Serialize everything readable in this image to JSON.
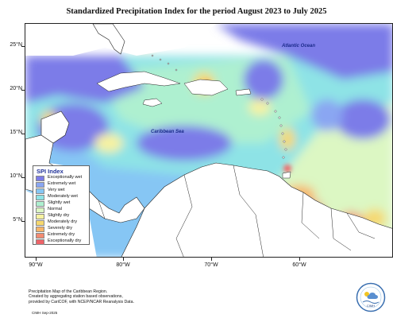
{
  "title": "Standardized Precipitation Index for the period August 2023 to July 2025",
  "axes": {
    "lat_ticks": [
      "25°N",
      "20°N",
      "15°N",
      "10°N",
      "5°N"
    ],
    "lon_ticks": [
      "90°W",
      "80°W",
      "70°W",
      "60°W"
    ]
  },
  "sea_labels": {
    "atlantic": "Atlantic Ocean",
    "caribbean": "Caribbean Sea"
  },
  "legend": {
    "title": "SPI Index",
    "items": [
      {
        "label": "Exceptionally wet",
        "color": "#7b7be8"
      },
      {
        "label": "Extremely wet",
        "color": "#8aa6f2"
      },
      {
        "label": "Very wet",
        "color": "#86c6f4"
      },
      {
        "label": "Moderately wet",
        "color": "#8ee3e6"
      },
      {
        "label": "Slightly wet",
        "color": "#aef0d0"
      },
      {
        "label": "Normal",
        "color": "#dcf7c3"
      },
      {
        "label": "Slightly dry",
        "color": "#f7f2a0"
      },
      {
        "label": "Moderately dry",
        "color": "#f6d86e"
      },
      {
        "label": "Severely dry",
        "color": "#f7b569"
      },
      {
        "label": "Extremely dry",
        "color": "#f38b72"
      },
      {
        "label": "Exceptionally dry",
        "color": "#ee6368"
      }
    ]
  },
  "footer": {
    "line1": "Precipitation Map of the Caribbean Region.",
    "line2": "Created by aggregating station based observations,",
    "line3": "provided by CariCOF, with NCEP/NCAR Reanalysis Data.",
    "date": "CIMH Sep-2025"
  },
  "logo_text": "CIMH"
}
